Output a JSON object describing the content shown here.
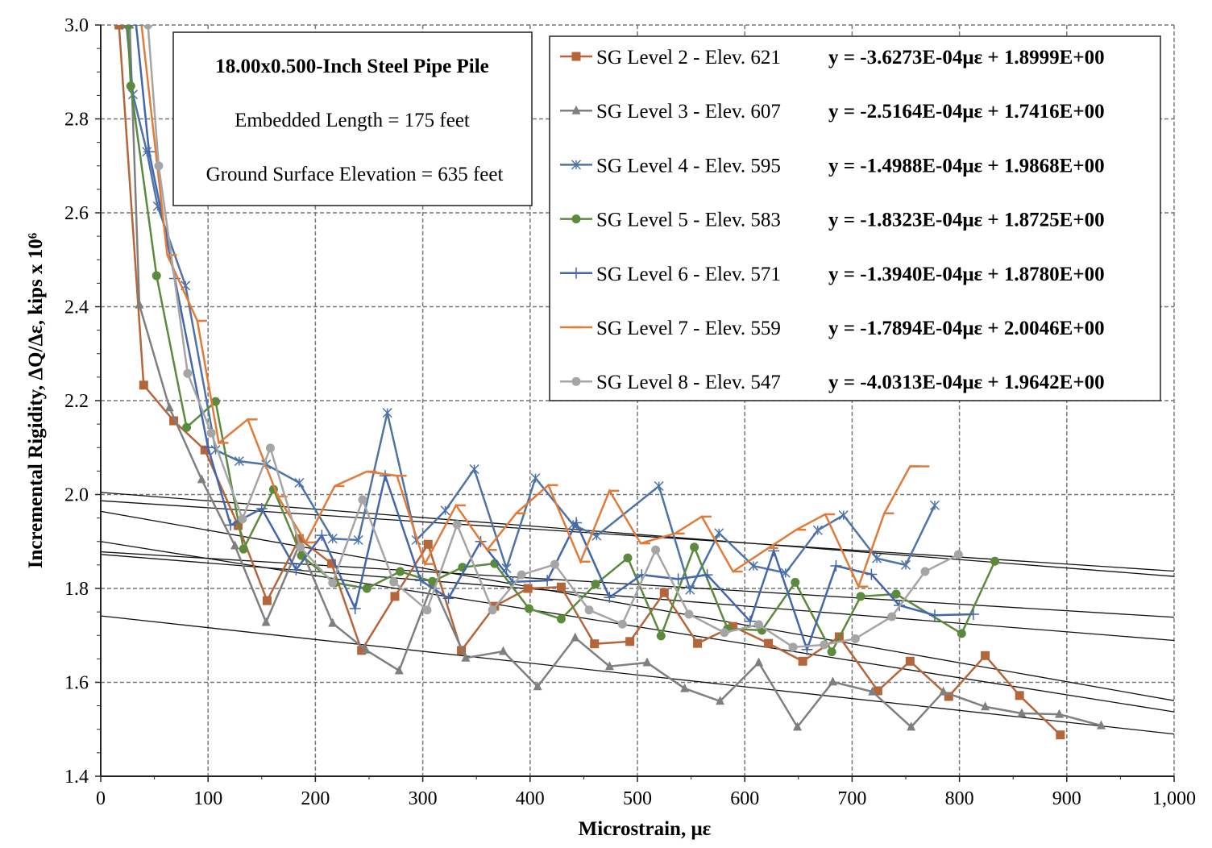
{
  "chart_data": {
    "type": "line",
    "xlabel": "Microstrain, με",
    "ylabel": "Incremental Rigidity, ΔQ/Δε, kips x 10⁶",
    "xlim": [
      0,
      1000
    ],
    "ylim": [
      1.4,
      3.0
    ],
    "xticks": [
      0,
      100,
      200,
      300,
      400,
      500,
      600,
      700,
      800,
      900,
      1000
    ],
    "xtick_labels": [
      "0",
      "100",
      "200",
      "300",
      "400",
      "500",
      "600",
      "700",
      "800",
      "900",
      "1,000"
    ],
    "yticks": [
      1.4,
      1.6,
      1.8,
      2.0,
      2.2,
      2.4,
      2.6,
      2.8,
      3.0
    ],
    "ytick_labels": [
      "1.4",
      "1.6",
      "1.8",
      "2.0",
      "2.2",
      "2.4",
      "2.6",
      "2.8",
      "3.0"
    ],
    "grid": true,
    "legend_placement": "top-right",
    "annotation": {
      "title": "18.00x0.500-Inch Steel Pipe Pile",
      "line1": "Embedded Length = 175 feet",
      "line2": "Ground Surface Elevation = 635 feet"
    },
    "series": [
      {
        "name": "SG Level 2 - Elev. 621",
        "equation": "y = -3.6273E-04με + 1.8999E+00",
        "slope": -0.00036273,
        "intercept": 1.8999,
        "color": "#b5653a",
        "marker": "square",
        "points": [
          [
            17,
            3.0
          ],
          [
            40,
            2.233
          ],
          [
            68,
            2.157
          ],
          [
            97,
            2.095
          ],
          [
            128,
            1.934
          ],
          [
            155,
            1.774
          ],
          [
            185,
            1.906
          ],
          [
            215,
            1.853
          ],
          [
            243,
            1.668
          ],
          [
            274,
            1.783
          ],
          [
            305,
            1.894
          ],
          [
            336,
            1.668
          ],
          [
            367,
            1.762
          ],
          [
            398,
            1.8
          ],
          [
            429,
            1.803
          ],
          [
            460,
            1.682
          ],
          [
            493,
            1.687
          ],
          [
            525,
            1.791
          ],
          [
            556,
            1.683
          ],
          [
            589,
            1.719
          ],
          [
            622,
            1.683
          ],
          [
            654,
            1.645
          ],
          [
            688,
            1.697
          ],
          [
            724,
            1.582
          ],
          [
            754,
            1.645
          ],
          [
            790,
            1.57
          ],
          [
            824,
            1.657
          ],
          [
            856,
            1.572
          ],
          [
            894,
            1.488
          ]
        ]
      },
      {
        "name": "SG Level 3 - Elev. 607",
        "equation": "y = -2.5164E-04με + 1.7416E+00",
        "slope": -0.00025164,
        "intercept": 1.7416,
        "color": "#7f7f7f",
        "marker": "triangle",
        "points": [
          [
            27,
            3.0
          ],
          [
            36,
            2.404
          ],
          [
            64,
            2.185
          ],
          [
            94,
            2.032
          ],
          [
            125,
            1.891
          ],
          [
            154,
            1.728
          ],
          [
            185,
            1.893
          ],
          [
            216,
            1.726
          ],
          [
            247,
            1.669
          ],
          [
            278,
            1.625
          ],
          [
            309,
            1.81
          ],
          [
            340,
            1.652
          ],
          [
            375,
            1.666
          ],
          [
            407,
            1.591
          ],
          [
            442,
            1.695
          ],
          [
            474,
            1.634
          ],
          [
            509,
            1.642
          ],
          [
            544,
            1.587
          ],
          [
            577,
            1.56
          ],
          [
            613,
            1.642
          ],
          [
            649,
            1.505
          ],
          [
            682,
            1.601
          ],
          [
            719,
            1.58
          ],
          [
            755,
            1.505
          ],
          [
            785,
            1.58
          ],
          [
            824,
            1.548
          ],
          [
            858,
            1.534
          ],
          [
            893,
            1.532
          ],
          [
            932,
            1.508
          ]
        ]
      },
      {
        "name": "SG Level 4 - Elev. 595",
        "equation": "y = -1.4988E-04με + 1.9868E+00",
        "slope": -0.00014988,
        "intercept": 1.9868,
        "color": "#4e73a6",
        "marker": "x",
        "points": [
          [
            24,
            3.0
          ],
          [
            30,
            2.852
          ],
          [
            43,
            2.73
          ],
          [
            53,
            2.614
          ],
          [
            79,
            2.445
          ],
          [
            107,
            2.095
          ],
          [
            129,
            2.071
          ],
          [
            154,
            2.064
          ],
          [
            185,
            2.025
          ],
          [
            216,
            1.906
          ],
          [
            240,
            1.903
          ],
          [
            267,
            2.174
          ],
          [
            294,
            1.903
          ],
          [
            321,
            1.966
          ],
          [
            348,
            2.054
          ],
          [
            378,
            1.843
          ],
          [
            405,
            2.035
          ],
          [
            440,
            1.936
          ],
          [
            462,
            1.912
          ],
          [
            520,
            2.018
          ],
          [
            549,
            1.797
          ],
          [
            576,
            1.918
          ],
          [
            608,
            1.848
          ],
          [
            638,
            1.833
          ],
          [
            668,
            1.924
          ],
          [
            692,
            1.956
          ],
          [
            723,
            1.864
          ],
          [
            750,
            1.85
          ],
          [
            777,
            1.977
          ]
        ]
      },
      {
        "name": "SG Level 5 - Elev. 583",
        "equation": "y = -1.8323E-04με + 1.8725E+00",
        "slope": -0.00018323,
        "intercept": 1.8725,
        "color": "#5b8a3c",
        "marker": "circle",
        "points": [
          [
            25,
            3.0
          ],
          [
            28,
            2.87
          ],
          [
            52,
            2.466
          ],
          [
            80,
            2.143
          ],
          [
            107,
            2.198
          ],
          [
            133,
            1.884
          ],
          [
            161,
            2.011
          ],
          [
            187,
            1.87
          ],
          [
            218,
            1.812
          ],
          [
            248,
            1.8
          ],
          [
            279,
            1.836
          ],
          [
            309,
            1.815
          ],
          [
            337,
            1.845
          ],
          [
            367,
            1.853
          ],
          [
            399,
            1.757
          ],
          [
            429,
            1.735
          ],
          [
            461,
            1.809
          ],
          [
            491,
            1.865
          ],
          [
            522,
            1.699
          ],
          [
            553,
            1.888
          ],
          [
            584,
            1.714
          ],
          [
            616,
            1.711
          ],
          [
            647,
            1.813
          ],
          [
            681,
            1.665
          ],
          [
            708,
            1.783
          ],
          [
            741,
            1.788
          ],
          [
            802,
            1.704
          ],
          [
            833,
            1.858
          ]
        ]
      },
      {
        "name": "SG Level 6 - Elev. 571",
        "equation": "y = -1.3940E-04με + 1.8780E+00",
        "slope": -0.0001394,
        "intercept": 1.878,
        "color": "#4466aa",
        "marker": "plus",
        "points": [
          [
            33,
            3.0
          ],
          [
            45,
            2.73
          ],
          [
            69,
            2.46
          ],
          [
            100,
            2.1
          ],
          [
            121,
            1.935
          ],
          [
            150,
            1.97
          ],
          [
            182,
            1.84
          ],
          [
            206,
            1.913
          ],
          [
            237,
            1.757
          ],
          [
            265,
            2.04
          ],
          [
            298,
            1.817
          ],
          [
            324,
            1.779
          ],
          [
            354,
            1.9
          ],
          [
            384,
            1.814
          ],
          [
            416,
            1.817
          ],
          [
            443,
            1.94
          ],
          [
            474,
            1.781
          ],
          [
            504,
            1.829
          ],
          [
            538,
            1.82
          ],
          [
            565,
            1.829
          ],
          [
            605,
            1.73
          ],
          [
            627,
            1.88
          ],
          [
            658,
            1.67
          ],
          [
            685,
            1.848
          ],
          [
            718,
            1.83
          ],
          [
            744,
            1.764
          ],
          [
            777,
            1.743
          ],
          [
            813,
            1.745
          ]
        ]
      },
      {
        "name": "SG Level 7 - Elev. 559",
        "equation": "y = -1.7894E-04με + 2.0046E+00",
        "slope": -0.00017894,
        "intercept": 2.0046,
        "color": "#e07b39",
        "marker": "dash",
        "points": [
          [
            38,
            3.0
          ],
          [
            62,
            2.51
          ],
          [
            90,
            2.37
          ],
          [
            110,
            2.11
          ],
          [
            137,
            2.16
          ],
          [
            165,
            1.996
          ],
          [
            191,
            1.898
          ],
          [
            218,
            2.018
          ],
          [
            248,
            2.049
          ],
          [
            276,
            2.04
          ],
          [
            302,
            1.852
          ],
          [
            331,
            1.977
          ],
          [
            360,
            1.882
          ],
          [
            387,
            1.96
          ],
          [
            417,
            2.02
          ],
          [
            447,
            1.857
          ],
          [
            474,
            2.008
          ],
          [
            503,
            1.896
          ],
          [
            535,
            1.917
          ],
          [
            560,
            1.953
          ],
          [
            589,
            1.836
          ],
          [
            622,
            1.886
          ],
          [
            648,
            1.925
          ],
          [
            675,
            1.958
          ],
          [
            706,
            1.804
          ],
          [
            730,
            1.96
          ],
          [
            754,
            2.06
          ],
          [
            763,
            2.06
          ]
        ]
      },
      {
        "name": "SG Level 8 - Elev. 547",
        "equation": "y = -4.0313E-04με + 1.9642E+00",
        "slope": -0.00040313,
        "intercept": 1.9642,
        "color": "#a5a5a5",
        "marker": "circle",
        "points": [
          [
            44,
            3.0
          ],
          [
            54,
            2.7
          ],
          [
            81,
            2.258
          ],
          [
            103,
            2.131
          ],
          [
            132,
            1.948
          ],
          [
            158,
            2.099
          ],
          [
            186,
            1.888
          ],
          [
            216,
            1.812
          ],
          [
            244,
            1.989
          ],
          [
            273,
            1.814
          ],
          [
            304,
            1.754
          ],
          [
            332,
            1.936
          ],
          [
            365,
            1.754
          ],
          [
            392,
            1.829
          ],
          [
            423,
            1.851
          ],
          [
            455,
            1.754
          ],
          [
            486,
            1.724
          ],
          [
            517,
            1.882
          ],
          [
            548,
            1.745
          ],
          [
            581,
            1.706
          ],
          [
            613,
            1.723
          ],
          [
            645,
            1.675
          ],
          [
            674,
            1.68
          ],
          [
            703,
            1.693
          ],
          [
            737,
            1.74
          ],
          [
            768,
            1.836
          ],
          [
            799,
            1.872
          ]
        ]
      }
    ]
  }
}
